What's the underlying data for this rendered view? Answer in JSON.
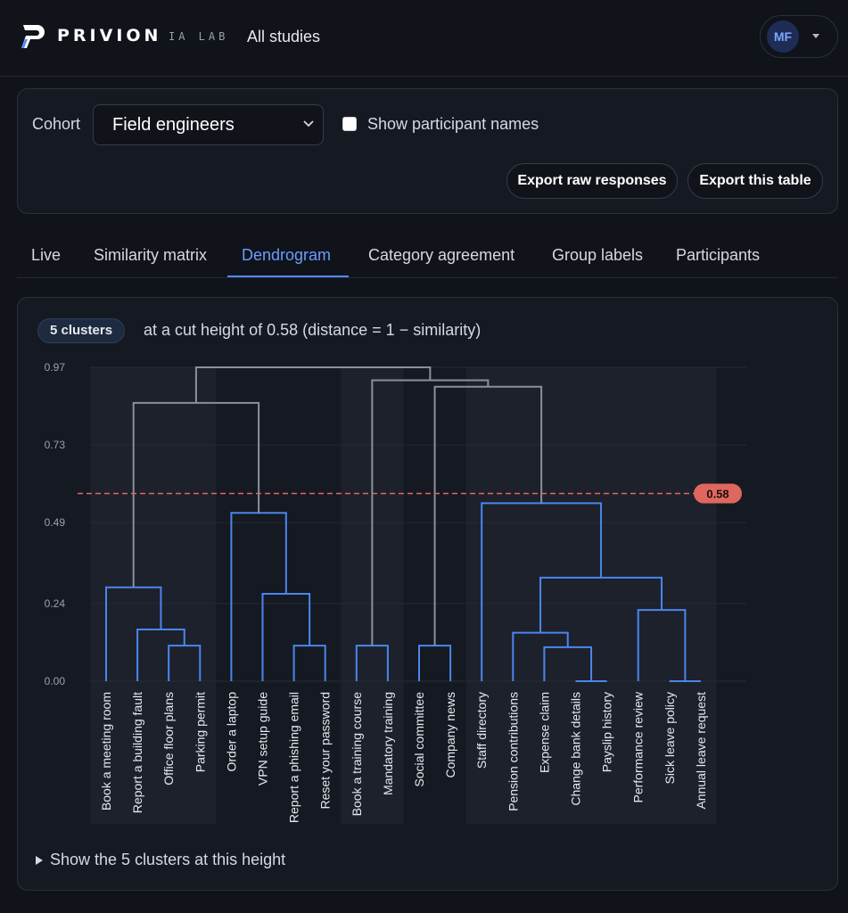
{
  "header": {
    "brand": "PRIVION",
    "brand_sub": "IA LAB",
    "nav_all_studies": "All studies",
    "user_initials": "MF"
  },
  "filters": {
    "cohort_label": "Cohort",
    "cohort_value": "Field engineers",
    "show_names_label": "Show participant names",
    "show_names_checked": false,
    "export_raw_label": "Export raw responses",
    "export_table_label": "Export this table"
  },
  "tabs": [
    {
      "label": "Live",
      "active": false
    },
    {
      "label": "Similarity matrix",
      "active": false
    },
    {
      "label": "Dendrogram",
      "active": true
    },
    {
      "label": "Category agreement",
      "active": false
    },
    {
      "label": "Group labels",
      "active": false
    },
    {
      "label": "Participants",
      "active": false
    }
  ],
  "dendrogram": {
    "clusters_badge": "5 clusters",
    "cut_text": "at a cut height of 0.58 (distance = 1 − similarity)",
    "cut_height": 0.58,
    "cut_label": "0.58",
    "y_ticks": [
      "0.97",
      "0.73",
      "0.49",
      "0.24",
      "0.00"
    ],
    "y_max": 0.97,
    "leaves": [
      "Book a meeting room",
      "Report a building fault",
      "Office floor plans",
      "Parking permit",
      "Order a laptop",
      "VPN setup guide",
      "Report a phishing email",
      "Reset your password",
      "Book a training course",
      "Mandatory training",
      "Social committee",
      "Company news",
      "Staff directory",
      "Pension contributions",
      "Expense claim",
      "Change bank details",
      "Payslip history",
      "Performance review",
      "Sick leave policy",
      "Annual leave request"
    ],
    "merges": [
      {
        "a": 2,
        "b": 3,
        "h": 0.11
      },
      {
        "a": 1,
        "b": 20,
        "h": 0.16
      },
      {
        "a": 0,
        "b": 21,
        "h": 0.29
      },
      {
        "a": 6,
        "b": 7,
        "h": 0.11
      },
      {
        "a": 5,
        "b": 23,
        "h": 0.27
      },
      {
        "a": 4,
        "b": 24,
        "h": 0.52
      },
      {
        "a": 8,
        "b": 9,
        "h": 0.11
      },
      {
        "a": 10,
        "b": 11,
        "h": 0.11
      },
      {
        "a": 15,
        "b": 16,
        "h": 0.0
      },
      {
        "a": 14,
        "b": 28,
        "h": 0.105
      },
      {
        "a": 13,
        "b": 29,
        "h": 0.15
      },
      {
        "a": 18,
        "b": 19,
        "h": 0.0
      },
      {
        "a": 17,
        "b": 31,
        "h": 0.22
      },
      {
        "a": 30,
        "b": 32,
        "h": 0.32
      },
      {
        "a": 12,
        "b": 33,
        "h": 0.55
      },
      {
        "a": 27,
        "b": 34,
        "h": 0.91
      },
      {
        "a": 26,
        "b": 35,
        "h": 0.93
      },
      {
        "a": 22,
        "b": 25,
        "h": 0.86
      },
      {
        "a": 36,
        "b": 37,
        "h": 0.97
      }
    ],
    "band_groups": [
      [
        0,
        3
      ],
      [
        8,
        9
      ],
      [
        12,
        19
      ]
    ],
    "colors": {
      "cluster": "#4a86ee",
      "above_cut": "#8a9099",
      "cut": "#e0675e",
      "band": "#1d212b",
      "grid": "#262a34"
    },
    "toggle_label": "Show the 5 clusters at this height"
  }
}
